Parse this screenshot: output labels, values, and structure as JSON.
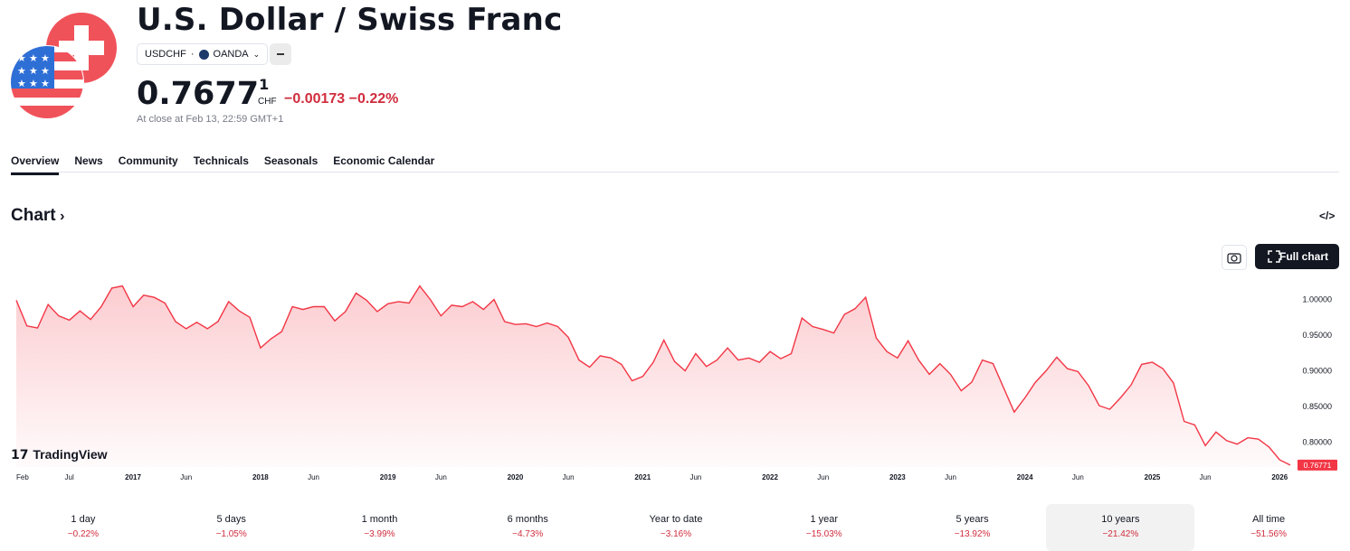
{
  "header": {
    "title": "U.S. Dollar / Swiss Franc",
    "symbol": "USDCHF",
    "exchange": "OANDA",
    "price": "0.7677",
    "price_superscript": "1",
    "currency": "CHF",
    "change": "−0.00173",
    "change_percent": "−0.22%",
    "status": "At close at Feb 13, 22:59 GMT+1"
  },
  "tabs": [
    "Overview",
    "News",
    "Community",
    "Technicals",
    "Seasonals",
    "Economic Calendar"
  ],
  "section_title": "Chart",
  "full_chart_button": "Full chart",
  "watermark": "TradingView",
  "chart_data": {
    "type": "line",
    "color": "#f23645",
    "categories": [
      "Feb",
      null,
      null,
      null,
      null,
      "Jul",
      null,
      null,
      null,
      null,
      null,
      "2017",
      null,
      null,
      null,
      null,
      "Jun",
      null,
      null,
      null,
      null,
      null,
      null,
      "2018",
      null,
      null,
      null,
      null,
      "Jun",
      null,
      null,
      null,
      null,
      null,
      null,
      "2019",
      null,
      null,
      null,
      null,
      "Jun",
      null,
      null,
      null,
      null,
      null,
      null,
      "2020",
      null,
      null,
      null,
      null,
      "Jun",
      null,
      null,
      null,
      null,
      null,
      null,
      "2021",
      null,
      null,
      null,
      null,
      "Jun",
      null,
      null,
      null,
      null,
      null,
      null,
      "2022",
      null,
      null,
      null,
      null,
      "Jun",
      null,
      null,
      null,
      null,
      null,
      null,
      "2023",
      null,
      null,
      null,
      null,
      "Jun",
      null,
      null,
      null,
      null,
      null,
      null,
      "2024",
      null,
      null,
      null,
      null,
      "Jun",
      null,
      null,
      null,
      null,
      null,
      null,
      "2025",
      null,
      null,
      null,
      null,
      "Jun",
      null,
      null,
      null,
      null,
      null,
      null,
      "2026",
      null
    ],
    "values": [
      0.999,
      0.963,
      0.96,
      0.993,
      0.977,
      0.971,
      0.984,
      0.972,
      0.99,
      1.016,
      1.019,
      0.99,
      1.006,
      1.003,
      0.995,
      0.969,
      0.959,
      0.968,
      0.959,
      0.969,
      0.997,
      0.984,
      0.975,
      0.932,
      0.945,
      0.955,
      0.99,
      0.986,
      0.99,
      0.99,
      0.97,
      0.983,
      1.009,
      0.999,
      0.983,
      0.994,
      0.997,
      0.995,
      1.019,
      1.0,
      0.977,
      0.992,
      0.99,
      0.997,
      0.986,
      1.0,
      0.969,
      0.965,
      0.966,
      0.962,
      0.967,
      0.962,
      0.947,
      0.915,
      0.905,
      0.921,
      0.918,
      0.909,
      0.886,
      0.892,
      0.912,
      0.943,
      0.913,
      0.9,
      0.924,
      0.906,
      0.915,
      0.932,
      0.915,
      0.918,
      0.912,
      0.927,
      0.917,
      0.924,
      0.974,
      0.962,
      0.958,
      0.953,
      0.979,
      0.987,
      1.003,
      0.946,
      0.927,
      0.918,
      0.942,
      0.915,
      0.895,
      0.91,
      0.895,
      0.872,
      0.884,
      0.915,
      0.91,
      0.876,
      0.842,
      0.862,
      0.884,
      0.9,
      0.919,
      0.903,
      0.899,
      0.879,
      0.851,
      0.846,
      0.862,
      0.88,
      0.909,
      0.912,
      0.903,
      0.883,
      0.829,
      0.824,
      0.795,
      0.814,
      0.802,
      0.797,
      0.806,
      0.804,
      0.793,
      0.775,
      0.76771
    ],
    "ylim": [
      0.765,
      1.04
    ],
    "yticks": [
      {
        "value": 1,
        "label": "1.00000"
      },
      {
        "value": 0.95,
        "label": "0.95000"
      },
      {
        "value": 0.9,
        "label": "0.90000"
      },
      {
        "value": 0.85,
        "label": "0.85000"
      },
      {
        "value": 0.8,
        "label": "0.80000"
      }
    ],
    "grid": false
  },
  "periods": [
    {
      "label": "1 day",
      "change": "−0.22%"
    },
    {
      "label": "5 days",
      "change": "−1.05%"
    },
    {
      "label": "1 month",
      "change": "−3.99%"
    },
    {
      "label": "6 months",
      "change": "−4.73%"
    },
    {
      "label": "Year to date",
      "change": "−3.16%"
    },
    {
      "label": "1 year",
      "change": "−15.03%"
    },
    {
      "label": "5 years",
      "change": "−13.92%"
    },
    {
      "label": "10 years",
      "change": "−21.42%",
      "selected": true
    },
    {
      "label": "All time",
      "change": "−51.56%"
    }
  ]
}
